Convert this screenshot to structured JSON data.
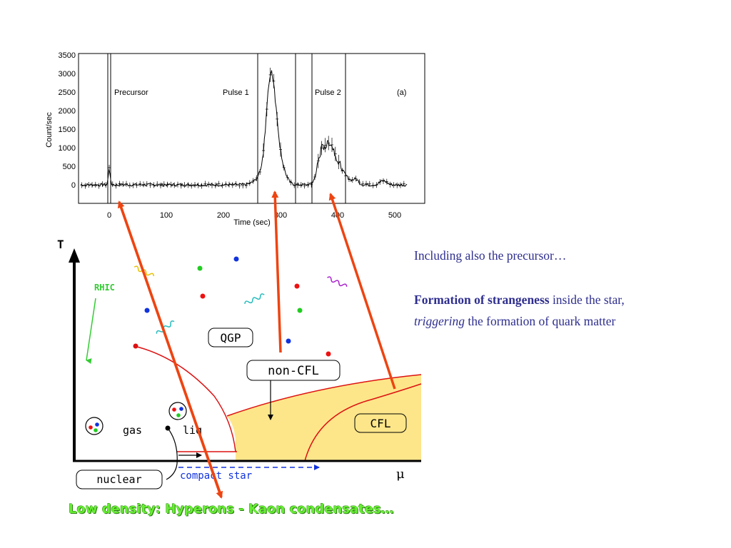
{
  "light_curve": {
    "y_axis_label": "Count/sec",
    "x_axis_label": "Time (sec)",
    "y_ticks": [
      "3500",
      "3000",
      "2500",
      "2000",
      "1500",
      "1000",
      "500",
      "0"
    ],
    "x_ticks": [
      "0",
      "100",
      "200",
      "300",
      "400",
      "500"
    ],
    "regions": {
      "precursor": "Precursor",
      "pulse1": "Pulse 1",
      "pulse2": "Pulse 2",
      "panel": "(a)"
    }
  },
  "phase_diagram": {
    "t_axis": "T",
    "mu_axis": "μ",
    "rhic": "RHIC",
    "qgp": "QGP",
    "non_cfl": "non-CFL",
    "cfl": "CFL",
    "gas": "gas",
    "liq": "liq",
    "nuclear": "nuclear",
    "compact_star": "compact star",
    "colors": {
      "quark_phase_fill": "#fde68a",
      "boundary": "#dd1111",
      "arrow": "#ee4411"
    }
  },
  "side_text": {
    "line1": "Including also the precursor…",
    "bold": "Formation of strangeness",
    "rest1": " inside the star,",
    "italic": "triggering",
    "rest2": " the formation of quark matter"
  },
  "footer": "Low density: Hyperons - Kaon condensates…"
}
